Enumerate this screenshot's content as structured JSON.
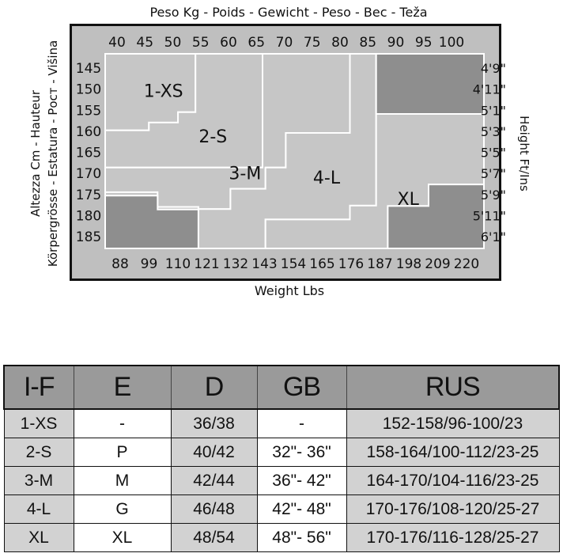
{
  "chart_data": {
    "type": "heatmap",
    "title": "Peso Kg - Poids - Gewicht - Peso - Bec - Teža",
    "xlabel": "Weight Lbs",
    "ylabel_left": [
      "Altezza Cm - Hauteur",
      "Körpergrösse - Estatura - Рост - Višina"
    ],
    "ylabel_right": "Height Ft/Ins",
    "x_kg_ticks": [
      "40",
      "45",
      "50",
      "55",
      "60",
      "65",
      "70",
      "75",
      "80",
      "85",
      "90",
      "95",
      "100"
    ],
    "x_lbs_ticks": [
      "88",
      "99",
      "110",
      "121",
      "132",
      "143",
      "154",
      "165",
      "176",
      "187",
      "198",
      "209",
      "220"
    ],
    "y_cm_ticks": [
      "145",
      "150",
      "155",
      "160",
      "165",
      "170",
      "175",
      "180",
      "185"
    ],
    "y_ft_ticks": [
      "4'9\"",
      "4'11\"",
      "5'1\"",
      "5'3\"",
      "5'5\"",
      "5'7\"",
      "5'9\"",
      "5'11\"",
      "6'1\""
    ],
    "xlim_kg": [
      37.5,
      102.5
    ],
    "ylim_cm": [
      142.5,
      187.5
    ],
    "regions": [
      {
        "label": "1-XS",
        "shade": "light",
        "polygon": [
          [
            37.5,
            142.5
          ],
          [
            53,
            142.5
          ],
          [
            53,
            156
          ],
          [
            50,
            156
          ],
          [
            50,
            158.4
          ],
          [
            45,
            158.4
          ],
          [
            45,
            160.2
          ],
          [
            37.5,
            160.2
          ]
        ]
      },
      {
        "label": "2-S",
        "shade": "light",
        "polygon": [
          [
            37.5,
            160.2
          ],
          [
            45,
            160.2
          ],
          [
            45,
            158.4
          ],
          [
            50,
            158.4
          ],
          [
            50,
            156
          ],
          [
            53,
            156
          ],
          [
            53,
            142.5
          ],
          [
            64.5,
            142.5
          ],
          [
            64.5,
            168.8
          ],
          [
            37.5,
            168.8
          ]
        ]
      },
      {
        "label": "3-M",
        "shade": "light",
        "polygon": [
          [
            37.5,
            168.8
          ],
          [
            64.5,
            168.8
          ],
          [
            64.5,
            142.5
          ],
          [
            79.5,
            142.5
          ],
          [
            79.5,
            160.8
          ],
          [
            68.5,
            160.8
          ],
          [
            68.5,
            168.8
          ],
          [
            65,
            168.8
          ],
          [
            65,
            173.7
          ],
          [
            59,
            173.7
          ],
          [
            59,
            178.4
          ],
          [
            54,
            178.4
          ],
          [
            54,
            178.4
          ],
          [
            53.5,
            178.4
          ],
          [
            53.5,
            178.4
          ],
          [
            53.5,
            177.9
          ],
          [
            46.5,
            177.9
          ],
          [
            46.5,
            174.5
          ],
          [
            37.5,
            174.5
          ]
        ]
      },
      {
        "label": "4-L",
        "shade": "light",
        "polygon": [
          [
            53.5,
            187.5
          ],
          [
            53.5,
            178.4
          ],
          [
            59,
            178.4
          ],
          [
            59,
            173.7
          ],
          [
            65,
            173.7
          ],
          [
            65,
            168.8
          ],
          [
            68.5,
            168.8
          ],
          [
            68.5,
            160.8
          ],
          [
            79.5,
            160.8
          ],
          [
            79.5,
            142.5
          ],
          [
            84,
            142.5
          ],
          [
            84,
            177.6
          ],
          [
            79.5,
            177.6
          ],
          [
            79.5,
            180.8
          ],
          [
            65,
            180.8
          ],
          [
            65,
            187.5
          ]
        ]
      },
      {
        "label": "XL",
        "shade": "light",
        "polygon": [
          [
            65,
            187.5
          ],
          [
            65,
            180.8
          ],
          [
            79.5,
            180.8
          ],
          [
            79.5,
            177.6
          ],
          [
            84,
            177.6
          ],
          [
            84,
            142.5
          ],
          [
            102.5,
            142.5
          ],
          [
            102.5,
            172.7
          ],
          [
            93,
            172.7
          ],
          [
            93,
            177.7
          ],
          [
            86,
            177.7
          ],
          [
            86,
            187.5
          ]
        ]
      },
      {
        "label": "",
        "shade": "dark",
        "polygon": [
          [
            84,
            142.5
          ],
          [
            102.5,
            142.5
          ],
          [
            102.5,
            156.4
          ],
          [
            84,
            156.4
          ]
        ]
      },
      {
        "label": "",
        "shade": "dark",
        "polygon": [
          [
            37.5,
            175.3
          ],
          [
            46.5,
            175.3
          ],
          [
            46.5,
            178.5
          ],
          [
            53.5,
            178.5
          ],
          [
            53.5,
            187.5
          ],
          [
            37.5,
            187.5
          ]
        ]
      },
      {
        "label": "",
        "shade": "dark",
        "polygon": [
          [
            86,
            187.5
          ],
          [
            86,
            177.7
          ],
          [
            93,
            177.7
          ],
          [
            93,
            172.7
          ],
          [
            102.5,
            172.7
          ],
          [
            102.5,
            187.5
          ]
        ]
      }
    ],
    "region_labels": [
      {
        "text": "1-XS",
        "kg": 47.5,
        "cm": 151
      },
      {
        "text": "2-S",
        "kg": 56,
        "cm": 161.5
      },
      {
        "text": "3-M",
        "kg": 61.5,
        "cm": 170
      },
      {
        "text": "4-L",
        "kg": 75.5,
        "cm": 171
      },
      {
        "text": "XL",
        "kg": 89.5,
        "cm": 176
      }
    ],
    "colors": {
      "light": "#c6c6c6",
      "dark": "#8e8e8e",
      "frame": "#bfbfbf",
      "line": "#ffffff",
      "border": "#111111"
    }
  },
  "size_table": {
    "headers": [
      "I-F",
      "E",
      "D",
      "GB",
      "RUS"
    ],
    "rows": [
      [
        "1-XS",
        "-",
        "36/38",
        "-",
        "152-158/96-100/23"
      ],
      [
        "2-S",
        "P",
        "40/42",
        "32\"- 36\"",
        "158-164/100-112/23-25"
      ],
      [
        "3-M",
        "M",
        "42/44",
        "36\"- 42\"",
        "164-170/104-116/23-25"
      ],
      [
        "4-L",
        "G",
        "46/48",
        "42\"- 48\"",
        "170-176/108-120/25-27"
      ],
      [
        "XL",
        "XL",
        "48/54",
        "48\"- 56\"",
        "170-176/116-128/25-27"
      ]
    ]
  }
}
